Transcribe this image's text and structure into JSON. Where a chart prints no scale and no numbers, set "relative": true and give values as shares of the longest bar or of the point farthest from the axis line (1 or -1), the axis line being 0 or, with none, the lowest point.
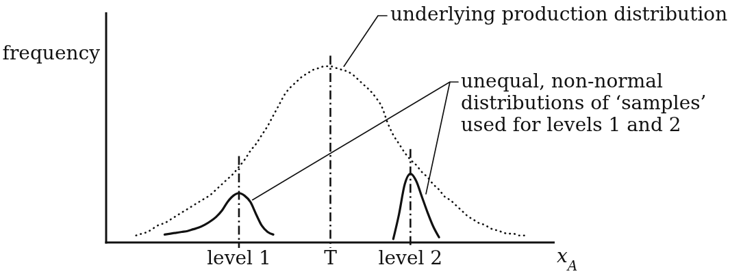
{
  "chart_data": {
    "type": "line",
    "relative": true,
    "ylabel": "frequency",
    "xlabel": "x$_{A}$",
    "categories": [
      null,
      null,
      null,
      null,
      null,
      null,
      null,
      null,
      null,
      null,
      null,
      null,
      null,
      null,
      null,
      null,
      null,
      null,
      null,
      null,
      null,
      null,
      null,
      "level 1",
      null,
      null,
      null,
      null,
      null,
      null,
      null,
      null,
      null,
      null,
      null,
      null,
      null,
      null,
      null,
      "T",
      null,
      null,
      null,
      null,
      null,
      null,
      null,
      null,
      null,
      null,
      null,
      null,
      null,
      "level 2",
      null,
      null,
      null,
      null,
      null,
      null,
      null,
      null,
      null,
      null,
      null,
      null,
      null,
      null,
      null,
      null,
      null,
      null,
      null,
      null,
      null,
      null,
      null,
      null,
      null
    ],
    "series": [
      {
        "color": "#111111",
        "line_style": "dotted",
        "values": [
          null,
          null,
          null,
          null,
          null,
          0.04,
          0.05,
          0.06,
          0.08,
          0.1,
          0.11,
          0.13,
          0.15,
          0.17,
          0.19,
          0.21,
          0.23,
          0.25,
          0.27,
          0.3,
          0.33,
          0.36,
          0.39,
          0.43,
          0.47,
          0.52,
          0.56,
          0.61,
          0.66,
          0.72,
          0.78,
          0.84,
          0.88,
          0.91,
          0.94,
          0.96,
          0.98,
          0.99,
          1,
          1,
          0.99,
          0.98,
          0.97,
          0.95,
          0.92,
          0.89,
          0.86,
          0.82,
          0.77,
          0.68,
          0.61,
          0.56,
          0.51,
          0.47,
          0.44,
          0.4,
          0.37,
          0.33,
          0.3,
          0.26,
          0.24,
          0.21,
          0.18,
          0.15,
          0.13,
          0.11,
          0.1,
          0.08,
          0.07,
          0.06,
          0.05,
          0.05,
          0.04,
          0.04,
          null,
          null,
          null,
          null,
          null
        ]
      },
      {
        "color": "#111111",
        "line_style": "solid",
        "values": [
          null,
          null,
          null,
          null,
          null,
          null,
          null,
          null,
          null,
          null,
          0.045,
          0.05,
          0.055,
          0.06,
          0.065,
          0.075,
          0.085,
          0.1,
          0.12,
          0.145,
          0.18,
          0.23,
          0.265,
          0.28,
          0.265,
          0.23,
          0.16,
          0.095,
          0.06,
          0.045,
          null,
          null,
          null,
          null,
          null,
          null,
          null,
          null,
          null,
          null,
          null,
          null,
          null,
          null,
          null,
          null,
          null,
          null,
          null,
          null,
          null,
          null,
          null,
          null,
          null,
          null,
          null,
          null,
          null,
          null,
          null,
          null,
          null,
          null,
          null,
          null,
          null,
          null,
          null,
          null,
          null,
          null,
          null,
          null,
          null,
          null,
          null,
          null,
          null
        ]
      },
      {
        "color": "#111111",
        "line_style": "solid",
        "values": [
          null,
          null,
          null,
          null,
          null,
          null,
          null,
          null,
          null,
          null,
          null,
          null,
          null,
          null,
          null,
          null,
          null,
          null,
          null,
          null,
          null,
          null,
          null,
          null,
          null,
          null,
          null,
          null,
          null,
          null,
          null,
          null,
          null,
          null,
          null,
          null,
          null,
          null,
          null,
          null,
          null,
          null,
          null,
          null,
          null,
          null,
          null,
          null,
          null,
          null,
          0.02,
          0.16,
          0.33,
          0.39,
          0.35,
          0.26,
          0.17,
          0.09,
          0.03,
          null,
          null,
          null,
          null,
          null,
          null,
          null,
          null,
          null,
          null,
          null,
          null,
          null,
          null,
          null,
          null,
          null,
          null,
          null,
          null
        ]
      }
    ],
    "ref_lines": [
      {
        "axis": "x",
        "value": "level 1",
        "line_style": "dashdot"
      },
      {
        "axis": "x",
        "value": "T",
        "line_style": "dashdot"
      },
      {
        "axis": "x",
        "value": "level 2",
        "line_style": "dashdot"
      }
    ],
    "annotations": [
      "underlying production distribution",
      "unequal, non-normal distributions of ‘samples’ used for levels 1 and 2"
    ]
  }
}
